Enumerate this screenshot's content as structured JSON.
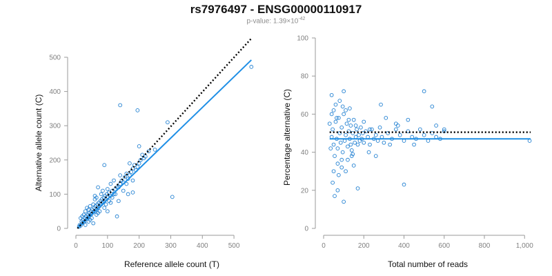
{
  "header": {
    "title": "rs7976497 - ENSG00000110917",
    "pvalue_prefix": "p-value: 1.39×10",
    "pvalue_exponent": "-42"
  },
  "colors": {
    "points": "#1f7fd1",
    "fit_line": "#1f8fe6",
    "reference_line": "#000000",
    "axis": "#9a9a9a",
    "tick_text": "#7f7f7f"
  },
  "chart_data": [
    {
      "type": "scatter",
      "xlabel": "Reference allele count (T)",
      "ylabel": "Alternative allele count (C)",
      "xlim": [
        0,
        550
      ],
      "ylim": [
        0,
        500
      ],
      "xticks": [
        "0",
        "100",
        "200",
        "300",
        "400",
        "500"
      ],
      "yticks": [
        "0",
        "100",
        "200",
        "300",
        "400",
        "500"
      ],
      "points_estimated": [
        [
          10,
          5
        ],
        [
          12,
          10
        ],
        [
          15,
          8
        ],
        [
          18,
          20
        ],
        [
          20,
          15
        ],
        [
          22,
          25
        ],
        [
          25,
          18
        ],
        [
          28,
          30
        ],
        [
          30,
          22
        ],
        [
          32,
          35
        ],
        [
          35,
          28
        ],
        [
          38,
          40
        ],
        [
          40,
          32
        ],
        [
          42,
          45
        ],
        [
          45,
          38
        ],
        [
          48,
          50
        ],
        [
          50,
          42
        ],
        [
          52,
          55
        ],
        [
          55,
          48
        ],
        [
          58,
          60
        ],
        [
          60,
          50
        ],
        [
          62,
          65
        ],
        [
          65,
          55
        ],
        [
          68,
          70
        ],
        [
          70,
          60
        ],
        [
          72,
          75
        ],
        [
          75,
          65
        ],
        [
          78,
          80
        ],
        [
          80,
          70
        ],
        [
          82,
          85
        ],
        [
          85,
          75
        ],
        [
          88,
          90
        ],
        [
          90,
          80
        ],
        [
          92,
          95
        ],
        [
          95,
          85
        ],
        [
          98,
          100
        ],
        [
          100,
          90
        ],
        [
          105,
          105
        ],
        [
          110,
          95
        ],
        [
          115,
          110
        ],
        [
          120,
          100
        ],
        [
          125,
          115
        ],
        [
          130,
          120
        ],
        [
          20,
          35
        ],
        [
          30,
          50
        ],
        [
          40,
          20
        ],
        [
          45,
          65
        ],
        [
          50,
          30
        ],
        [
          60,
          85
        ],
        [
          70,
          45
        ],
        [
          80,
          100
        ],
        [
          90,
          60
        ],
        [
          100,
          115
        ],
        [
          110,
          75
        ],
        [
          35,
          60
        ],
        [
          25,
          40
        ],
        [
          15,
          30
        ],
        [
          55,
          70
        ],
        [
          65,
          90
        ],
        [
          75,
          50
        ],
        [
          85,
          110
        ],
        [
          95,
          70
        ],
        [
          105,
          80
        ],
        [
          115,
          90
        ],
        [
          125,
          100
        ],
        [
          135,
          120
        ],
        [
          140,
          130
        ],
        [
          145,
          140
        ],
        [
          150,
          135
        ],
        [
          155,
          150
        ],
        [
          160,
          160
        ],
        [
          165,
          145
        ],
        [
          170,
          155
        ],
        [
          175,
          165
        ],
        [
          180,
          175
        ],
        [
          185,
          185
        ],
        [
          190,
          170
        ],
        [
          195,
          180
        ],
        [
          200,
          190
        ],
        [
          205,
          200
        ],
        [
          210,
          215
        ],
        [
          215,
          205
        ],
        [
          220,
          210
        ],
        [
          230,
          225
        ],
        [
          250,
          230
        ],
        [
          140,
          360
        ],
        [
          195,
          345
        ],
        [
          290,
          310
        ],
        [
          305,
          92
        ],
        [
          555,
          472
        ],
        [
          90,
          185
        ],
        [
          130,
          35
        ],
        [
          60,
          95
        ],
        [
          70,
          120
        ],
        [
          100,
          50
        ],
        [
          110,
          130
        ],
        [
          45,
          25
        ],
        [
          55,
          15
        ],
        [
          65,
          40
        ],
        [
          30,
          10
        ],
        [
          40,
          55
        ],
        [
          150,
          110
        ],
        [
          160,
          130
        ],
        [
          170,
          190
        ],
        [
          180,
          105
        ],
        [
          200,
          240
        ],
        [
          165,
          100
        ],
        [
          135,
          80
        ],
        [
          120,
          140
        ],
        [
          140,
          155
        ],
        [
          180,
          140
        ]
      ],
      "fit_line": [
        [
          5,
          0
        ],
        [
          555,
          492
        ]
      ],
      "reference_line": [
        [
          5,
          0
        ],
        [
          555,
          555
        ]
      ]
    },
    {
      "type": "scatter",
      "xlabel": "Total number of reads",
      "ylabel": "Percentage alternative (C)",
      "xlim": [
        0,
        1030
      ],
      "ylim": [
        0,
        100
      ],
      "xticks": [
        "0",
        "200",
        "400",
        "600",
        "800",
        "1,000"
      ],
      "yticks": [
        "0",
        "20",
        "40",
        "60",
        "80",
        "100"
      ],
      "points_estimated": [
        [
          40,
          48
        ],
        [
          45,
          52
        ],
        [
          50,
          44
        ],
        [
          55,
          38
        ],
        [
          60,
          56
        ],
        [
          65,
          47
        ],
        [
          70,
          42
        ],
        [
          75,
          58
        ],
        [
          80,
          50
        ],
        [
          85,
          45
        ],
        [
          90,
          53
        ],
        [
          95,
          40
        ],
        [
          100,
          60
        ],
        [
          105,
          46
        ],
        [
          110,
          49
        ],
        [
          115,
          55
        ],
        [
          120,
          43
        ],
        [
          125,
          51
        ],
        [
          130,
          47
        ],
        [
          135,
          54
        ],
        [
          140,
          41
        ],
        [
          145,
          50
        ],
        [
          150,
          57
        ],
        [
          155,
          45
        ],
        [
          160,
          48
        ],
        [
          165,
          52
        ],
        [
          170,
          44
        ],
        [
          175,
          49
        ],
        [
          180,
          46
        ],
        [
          185,
          53
        ],
        [
          190,
          47
        ],
        [
          195,
          50
        ],
        [
          200,
          45
        ],
        [
          210,
          51
        ],
        [
          220,
          48
        ],
        [
          230,
          44
        ],
        [
          240,
          52
        ],
        [
          250,
          47
        ],
        [
          260,
          49
        ],
        [
          270,
          46
        ],
        [
          280,
          53
        ],
        [
          290,
          48
        ],
        [
          300,
          45
        ],
        [
          320,
          50
        ],
        [
          340,
          47
        ],
        [
          360,
          52
        ],
        [
          380,
          49
        ],
        [
          400,
          46
        ],
        [
          420,
          51
        ],
        [
          440,
          48
        ],
        [
          460,
          47
        ],
        [
          480,
          52
        ],
        [
          500,
          49
        ],
        [
          520,
          46
        ],
        [
          540,
          50
        ],
        [
          560,
          48
        ],
        [
          580,
          47
        ],
        [
          600,
          51
        ],
        [
          40,
          70
        ],
        [
          50,
          30
        ],
        [
          60,
          65
        ],
        [
          70,
          34
        ],
        [
          80,
          67
        ],
        [
          90,
          32
        ],
        [
          100,
          72
        ],
        [
          110,
          62
        ],
        [
          120,
          36
        ],
        [
          130,
          63
        ],
        [
          140,
          38
        ],
        [
          55,
          17
        ],
        [
          70,
          20
        ],
        [
          100,
          14
        ],
        [
          45,
          24
        ],
        [
          170,
          21
        ],
        [
          400,
          23
        ],
        [
          50,
          62
        ],
        [
          90,
          36
        ],
        [
          30,
          55
        ],
        [
          35,
          42
        ],
        [
          285,
          65
        ],
        [
          500,
          72
        ],
        [
          540,
          64
        ],
        [
          1025,
          46
        ],
        [
          600,
          52
        ],
        [
          225,
          40
        ],
        [
          260,
          38
        ],
        [
          330,
          44
        ],
        [
          360,
          55
        ],
        [
          110,
          30
        ],
        [
          150,
          33
        ],
        [
          40,
          60
        ],
        [
          65,
          58
        ],
        [
          75,
          28
        ],
        [
          95,
          64
        ],
        [
          125,
          57
        ],
        [
          135,
          44
        ],
        [
          145,
          39
        ],
        [
          160,
          54
        ],
        [
          200,
          56
        ],
        [
          230,
          52
        ],
        [
          310,
          58
        ],
        [
          370,
          54
        ],
        [
          420,
          57
        ],
        [
          450,
          44
        ],
        [
          560,
          54
        ]
      ],
      "fit_line": [
        [
          30,
          47
        ],
        [
          1030,
          47
        ]
      ],
      "reference_line": [
        [
          30,
          50.5
        ],
        [
          1030,
          50.5
        ]
      ]
    }
  ]
}
